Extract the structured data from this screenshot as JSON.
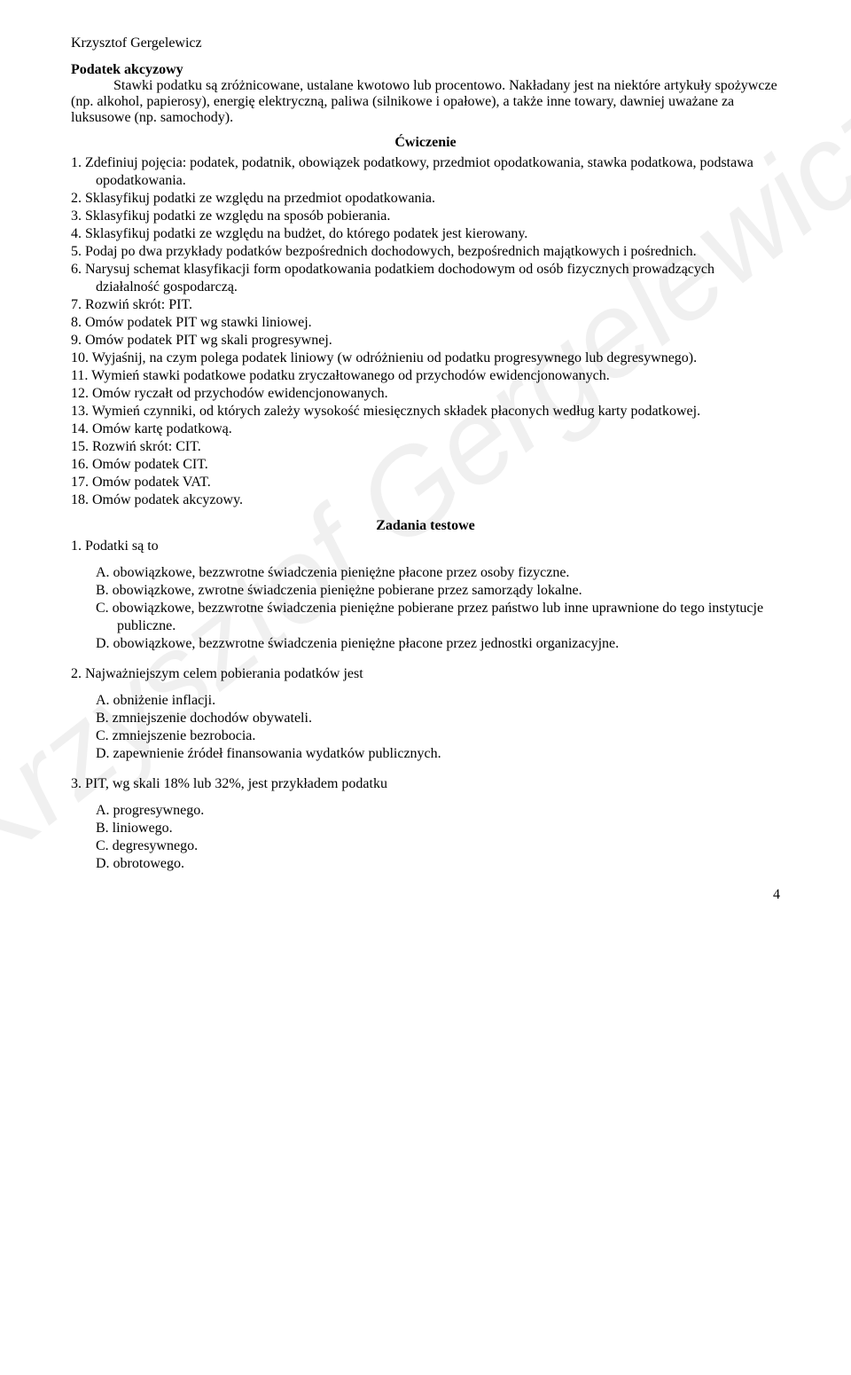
{
  "header": {
    "author": "Krzysztof Gergelewicz"
  },
  "watermark": "Krzysztof Gergelewicz",
  "accise": {
    "title": "Podatek akcyzowy",
    "body": "Stawki podatku są zróżnicowane, ustalane kwotowo lub procentowo. Nakładany jest na niektóre artykuły spożywcze (np. alkohol, papierosy), energię elektryczną, paliwa (silnikowe i opałowe), a także inne towary, dawniej uważane za luksusowe (np. samochody)."
  },
  "exercise": {
    "title": "Ćwiczenie",
    "items": [
      "Zdefiniuj pojęcia: podatek, podatnik, obowiązek podatkowy, przedmiot opodatkowania, stawka podatkowa, podstawa opodatkowania.",
      "Sklasyfikuj podatki ze względu na przedmiot opodatkowania.",
      "Sklasyfikuj podatki ze względu na sposób pobierania.",
      "Sklasyfikuj podatki ze względu na budżet, do którego podatek jest kierowany.",
      "Podaj po dwa przykłady podatków bezpośrednich dochodowych, bezpośrednich majątkowych i pośrednich.",
      "Narysuj schemat klasyfikacji form opodatkowania podatkiem dochodowym od osób fizycznych prowadzących działalność gospodarczą.",
      "Rozwiń skrót: PIT.",
      "Omów podatek PIT wg stawki liniowej.",
      "Omów podatek PIT wg skali progresywnej.",
      "Wyjaśnij, na czym polega podatek liniowy (w odróżnieniu od podatku progresywnego lub degresywnego).",
      "Wymień stawki podatkowe podatku zryczałtowanego od przychodów ewidencjonowanych.",
      "Omów ryczałt od przychodów ewidencjonowanych.",
      "Wymień czynniki, od których zależy wysokość miesięcznych składek płaconych według karty podatkowej.",
      "Omów kartę podatkową.",
      "Rozwiń skrót: CIT.",
      "Omów podatek CIT.",
      "Omów podatek VAT.",
      "Omów podatek akcyzowy."
    ]
  },
  "test": {
    "title": "Zadania testowe",
    "questions": [
      {
        "stem": "Podatki są to",
        "options": [
          "obowiązkowe, bezzwrotne świadczenia pieniężne płacone przez osoby fizyczne.",
          "obowiązkowe, zwrotne świadczenia pieniężne pobierane przez samorządy lokalne.",
          "obowiązkowe, bezzwrotne świadczenia pieniężne pobierane przez państwo lub inne uprawnione do tego instytucje publiczne.",
          "obowiązkowe, bezzwrotne świadczenia pieniężne płacone przez jednostki organizacyjne."
        ]
      },
      {
        "stem": "Najważniejszym celem pobierania podatków jest",
        "options": [
          "obniżenie inflacji.",
          "zmniejszenie dochodów obywateli.",
          "zmniejszenie bezrobocia.",
          "zapewnienie źródeł finansowania wydatków publicznych."
        ]
      },
      {
        "stem": "PIT, wg skali 18% lub 32%, jest przykładem podatku",
        "options": [
          "progresywnego.",
          "liniowego.",
          "degresywnego.",
          "obrotowego."
        ]
      }
    ]
  },
  "page_number": "4",
  "colors": {
    "text": "#000000",
    "background": "#ffffff",
    "watermark": "rgba(0,0,0,0.06)"
  },
  "typography": {
    "family": "Times New Roman",
    "body_size_pt": 12
  }
}
